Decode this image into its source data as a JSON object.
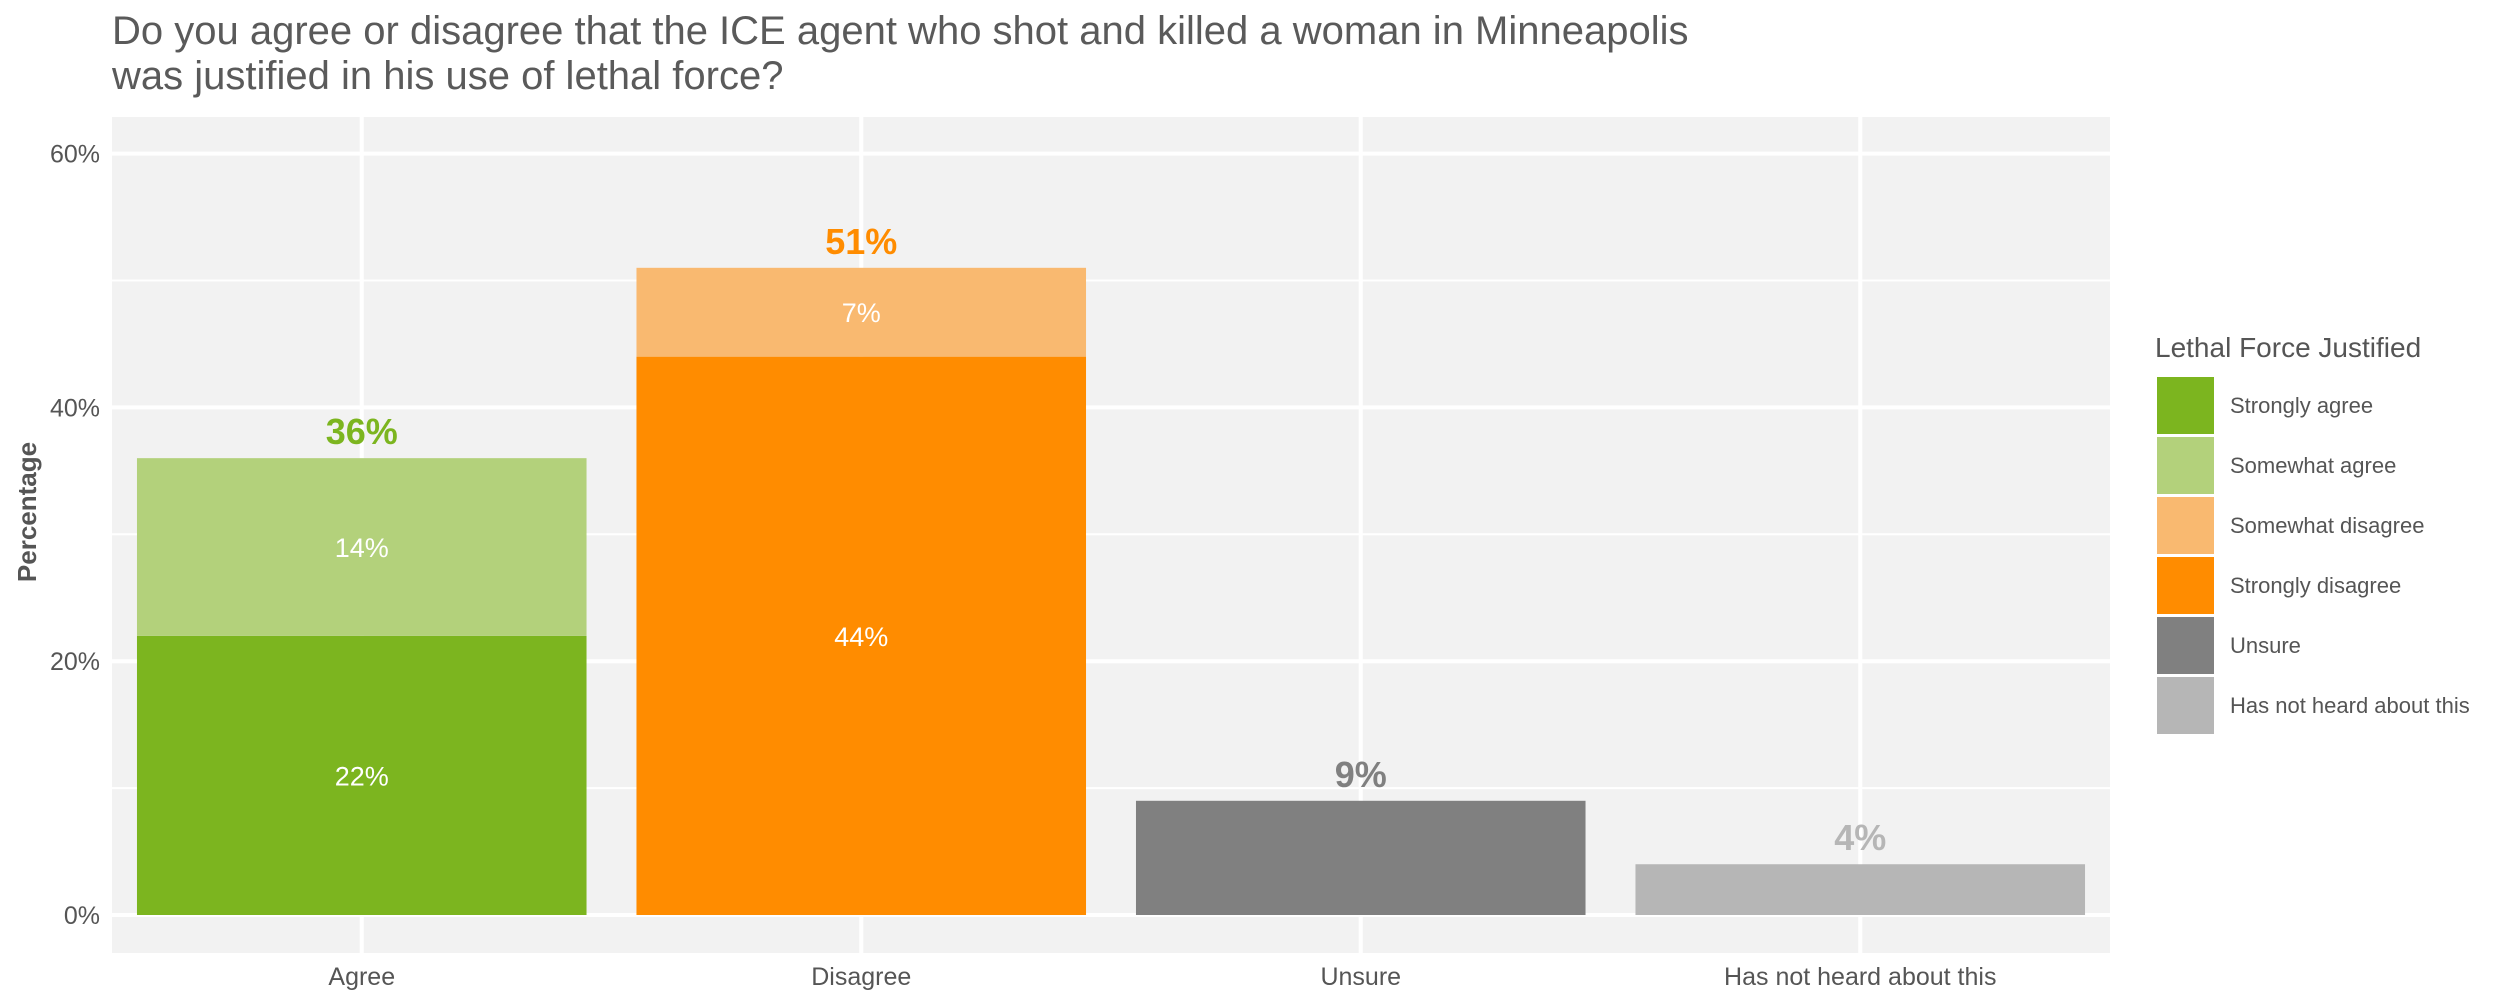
{
  "chart_data": {
    "type": "bar",
    "stacked": true,
    "title": "Do you agree or disagree that the ICE agent who shot and killed a woman in Minneapolis was justified in his use of lethal force?",
    "title_lines": [
      "Do you agree or disagree that the ICE agent who shot and killed a woman in Minneapolis",
      "was justified in his use of lethal force?"
    ],
    "xlabel": "",
    "ylabel": "Percentage",
    "ylim": [
      0,
      63
    ],
    "yticks": [
      0,
      20,
      40,
      60
    ],
    "ytick_labels": [
      "0%",
      "20%",
      "40%",
      "60%"
    ],
    "grid": true,
    "legend_title": "Lethal Force Justified",
    "legend_position": "right",
    "categories": [
      "Agree",
      "Disagree",
      "Unsure",
      "Has not heard about this"
    ],
    "series": [
      {
        "name": "Strongly agree",
        "color": "#7cb51f",
        "values": [
          22,
          0,
          0,
          0
        ],
        "labels": [
          "22%",
          "",
          "",
          ""
        ]
      },
      {
        "name": "Somewhat agree",
        "color": "#b3d17b",
        "values": [
          14,
          0,
          0,
          0
        ],
        "labels": [
          "14%",
          "",
          "",
          ""
        ]
      },
      {
        "name": "Strongly disagree",
        "color": "#ff8c00",
        "values": [
          0,
          44,
          0,
          0
        ],
        "labels": [
          "",
          "44%",
          "",
          ""
        ]
      },
      {
        "name": "Somewhat disagree",
        "color": "#f9b970",
        "values": [
          0,
          7,
          0,
          0
        ],
        "labels": [
          "",
          "7%",
          "",
          ""
        ]
      },
      {
        "name": "Unsure",
        "color": "#808080",
        "values": [
          0,
          0,
          9,
          0
        ],
        "labels": [
          "",
          "",
          "",
          ""
        ]
      },
      {
        "name": "Has not heard about this",
        "color": "#b6b6b6",
        "values": [
          0,
          0,
          0,
          4
        ],
        "labels": [
          "",
          "",
          "",
          ""
        ]
      }
    ],
    "legend_order": [
      "Strongly agree",
      "Somewhat agree",
      "Somewhat disagree",
      "Strongly disagree",
      "Unsure",
      "Has not heard about this"
    ],
    "totals": [
      {
        "value": 36,
        "label": "36%",
        "color": "#7cb51f"
      },
      {
        "value": 51,
        "label": "51%",
        "color": "#ff8c00"
      },
      {
        "value": 9,
        "label": "9%",
        "color": "#808080"
      },
      {
        "value": 4,
        "label": "4%",
        "color": "#b6b6b6"
      }
    ]
  }
}
